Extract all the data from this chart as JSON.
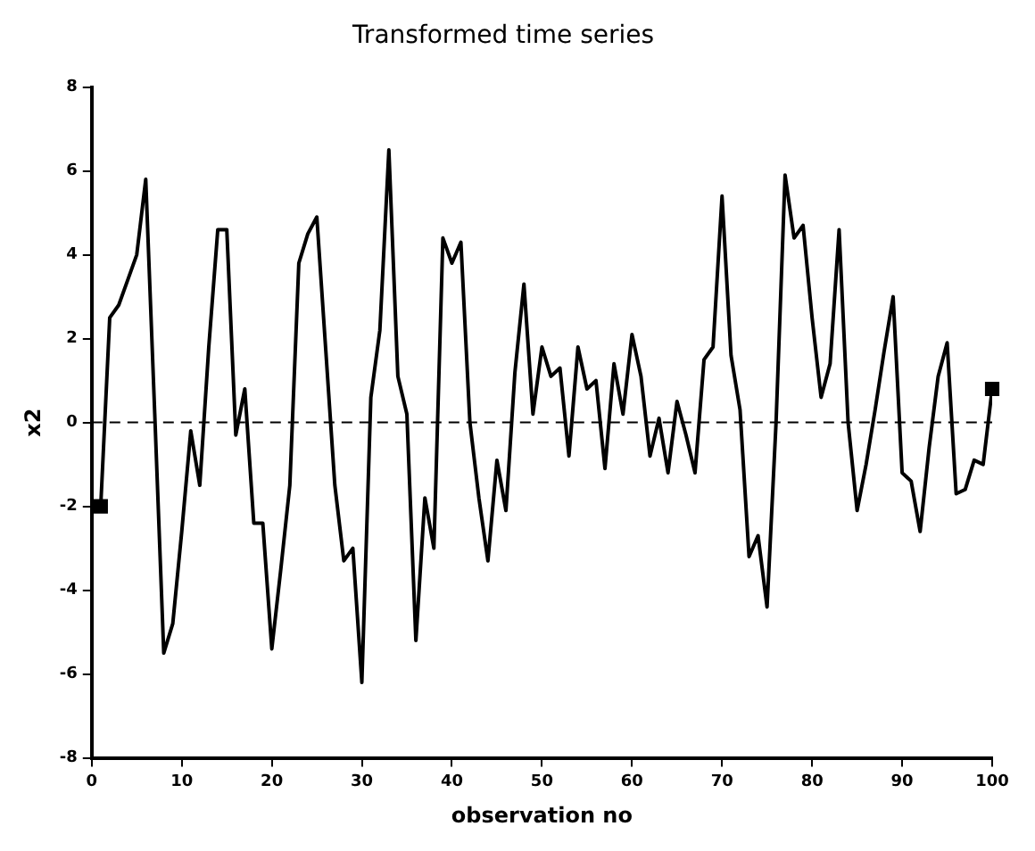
{
  "chart_data": {
    "type": "line",
    "title": "Transformed time series",
    "xlabel": "observation no",
    "ylabel": "x2",
    "xlim": [
      0,
      100
    ],
    "xticks": [
      0,
      10,
      20,
      30,
      40,
      50,
      60,
      70,
      80,
      90,
      100
    ],
    "ylim": [
      -8,
      8
    ],
    "yticks": [
      -8,
      -6,
      -4,
      -2,
      0,
      2,
      4,
      6,
      8
    ],
    "grid": false,
    "legend": false,
    "ref_lines": [
      {
        "axis": "y",
        "value": 0,
        "line_style": "dashed",
        "color": "#000000"
      }
    ],
    "series": [
      {
        "type": "line",
        "color": "#000000",
        "marker": "none",
        "line_style": "solid",
        "x": [
          1,
          2,
          3,
          4,
          5,
          6,
          7,
          8,
          9,
          10,
          11,
          12,
          13,
          14,
          15,
          16,
          17,
          18,
          19,
          20,
          21,
          22,
          23,
          24,
          25,
          26,
          27,
          28,
          29,
          30,
          31,
          32,
          33,
          34,
          35,
          36,
          37,
          38,
          39,
          40,
          41,
          42,
          43,
          44,
          45,
          46,
          47,
          48,
          49,
          50,
          51,
          52,
          53,
          54,
          55,
          56,
          57,
          58,
          59,
          60,
          61,
          62,
          63,
          64,
          65,
          66,
          67,
          68,
          69,
          70,
          71,
          72,
          73,
          74,
          75,
          76,
          77,
          78,
          79,
          80,
          81,
          82,
          83,
          84,
          85,
          86,
          87,
          88,
          89,
          90,
          91,
          92,
          93,
          94,
          95,
          96,
          97,
          98,
          99,
          100
        ],
        "values": [
          -2,
          2.5,
          2.8,
          3.4,
          4,
          5.8,
          0.2,
          -5.5,
          -4.8,
          -2.6,
          -0.2,
          -1.5,
          1.8,
          4.6,
          4.6,
          -0.3,
          0.8,
          -2.4,
          -2.4,
          -5.4,
          -3.5,
          -1.5,
          3.8,
          4.5,
          4.9,
          1.7,
          -1.5,
          -3.3,
          -3,
          -6.2,
          0.6,
          2.2,
          6.5,
          1.1,
          0.2,
          -5.2,
          -1.8,
          -3,
          4.4,
          3.8,
          4.3,
          0,
          -1.8,
          -3.3,
          -0.9,
          -2.1,
          1.2,
          3.3,
          0.2,
          1.8,
          1.1,
          1.3,
          -0.8,
          1.8,
          0.8,
          1,
          -1.1,
          1.4,
          0.2,
          2.1,
          1.1,
          -0.8,
          0.1,
          -1.2,
          0.5,
          -0.3,
          -1.2,
          1.5,
          1.8,
          5.4,
          1.6,
          0.3,
          -3.2,
          -2.7,
          -4.4,
          0,
          5.9,
          4.4,
          4.7,
          2.5,
          0.6,
          1.4,
          4.6,
          0,
          -2.1,
          -1,
          0.3,
          1.7,
          3,
          -1.2,
          -1.4,
          -2.6,
          -0.6,
          1.1,
          1.9,
          -1.7,
          -1.6,
          -0.9,
          -1,
          0.8
        ]
      },
      {
        "type": "scatter",
        "color": "#000000",
        "marker": "square",
        "x": [
          1,
          100
        ],
        "values": [
          -2,
          0.8
        ]
      }
    ]
  }
}
